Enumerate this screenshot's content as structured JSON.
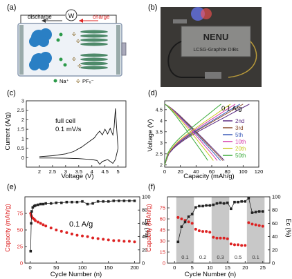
{
  "panels": {
    "a": {
      "label": "(a)",
      "discharge": "discharge",
      "charge": "charge",
      "meter": "W",
      "na_label": "Na⁺",
      "pf_label": "PF₆⁻"
    },
    "b": {
      "label": "(b)",
      "title": "NENU",
      "subtitle": "LCSG-Graphite DIBs"
    },
    "c": {
      "label": "(c)",
      "note1": "full cell",
      "note2": "0.1 mV/s",
      "xlabel": "Voltage (V)",
      "ylabel": "Current (A/g)"
    },
    "d": {
      "label": "(d)",
      "note": "0.1 A/g",
      "xlabel": "Capacity (mAh/g)",
      "ylabel": "Voltage (V)"
    },
    "e": {
      "label": "(e)",
      "note": "0.1 A/g",
      "xlabel": "Cycle Number (n)",
      "ylabel_left": "Capacity (mAh/g)",
      "ylabel_right": "Ec (%)"
    },
    "f": {
      "label": "(f)",
      "xlabel": "Cycle Number (n)",
      "ylabel_left": "Capacity (mAh/g)",
      "ylabel_right": "Ec (%)",
      "rates": [
        "0.1",
        "0.2",
        "0.3",
        "0.5",
        "0.1"
      ]
    }
  },
  "colors": {
    "capacity": "#dd2222",
    "efficiency": "#222222",
    "shade": "#c8c8c8"
  },
  "chart_data": [
    {
      "id": "c",
      "type": "line",
      "xlim": [
        1.5,
        5.3
      ],
      "ylim": [
        -0.5,
        3.0
      ],
      "xticks": [
        2.0,
        2.5,
        3.0,
        3.5,
        4.0,
        4.5,
        5.0
      ],
      "yticks": [
        0.0,
        0.5,
        1.0,
        1.5,
        2.0,
        2.5,
        3.0
      ],
      "series": [
        {
          "x": [
            2.0,
            2.5,
            3.0,
            3.3,
            3.6,
            3.9,
            4.1,
            4.2,
            4.3,
            4.4,
            4.5,
            4.6,
            4.7,
            4.8,
            4.85,
            4.9,
            4.95,
            5.0
          ],
          "y": [
            0.05,
            0.1,
            0.2,
            0.32,
            0.55,
            0.85,
            1.05,
            1.25,
            1.4,
            1.2,
            1.5,
            1.25,
            1.55,
            1.2,
            1.6,
            2.6,
            1.5,
            0.5
          ]
        },
        {
          "x": [
            5.0,
            4.9,
            4.8,
            4.7,
            4.6,
            4.5,
            4.4,
            4.3,
            4.2,
            4.0,
            3.5,
            3.0,
            2.5,
            2.0
          ],
          "y": [
            0.5,
            -0.1,
            -0.3,
            -0.2,
            -0.1,
            -0.15,
            -0.2,
            -0.35,
            -0.15,
            -0.1,
            -0.05,
            -0.03,
            -0.02,
            -0.02
          ]
        }
      ]
    },
    {
      "id": "d",
      "type": "line",
      "xlim": [
        0,
        120
      ],
      "ylim": [
        1.9,
        4.9
      ],
      "xticks": [
        0,
        20,
        40,
        60,
        80,
        100,
        120
      ],
      "yticks": [
        2.0,
        2.5,
        3.0,
        3.5,
        4.0,
        4.5
      ],
      "series": [
        {
          "name": "2nd",
          "color": "#5a2a82",
          "charge_cap": 108,
          "discharge_cap": 76
        },
        {
          "name": "3rd",
          "color": "#8b4a2b",
          "charge_cap": 100,
          "discharge_cap": 74
        },
        {
          "name": "5th",
          "color": "#3a5bb8",
          "charge_cap": 96,
          "discharge_cap": 71
        },
        {
          "name": "10th",
          "color": "#d63aa8",
          "charge_cap": 90,
          "discharge_cap": 67
        },
        {
          "name": "20th",
          "color": "#c8c820",
          "charge_cap": 84,
          "discharge_cap": 62
        },
        {
          "name": "50th",
          "color": "#3aaa3a",
          "charge_cap": 72,
          "discharge_cap": 55
        }
      ]
    },
    {
      "id": "e",
      "type": "scatter",
      "xlim": [
        -10,
        210
      ],
      "ylim": [
        0,
        100
      ],
      "xticks": [
        0,
        50,
        100,
        150,
        200
      ],
      "yticks": [
        0,
        25,
        50,
        75
      ],
      "y2lim": [
        0,
        100
      ],
      "y2ticks": [
        0,
        20,
        40,
        60,
        80,
        100
      ],
      "series": [
        {
          "name": "Capacity",
          "axis": "left",
          "x": [
            1,
            2,
            3,
            5,
            8,
            10,
            15,
            20,
            25,
            30,
            40,
            50,
            60,
            70,
            80,
            90,
            100,
            110,
            120,
            130,
            140,
            150,
            160,
            170,
            180,
            190,
            200
          ],
          "y": [
            75,
            72,
            70,
            68,
            66,
            64,
            62,
            60,
            58,
            56,
            53,
            50,
            48,
            46,
            44,
            42,
            41,
            40,
            38,
            37,
            36,
            35,
            34,
            34,
            33,
            33,
            32
          ]
        },
        {
          "name": "Ec",
          "axis": "right",
          "x": [
            1,
            2,
            3,
            5,
            8,
            10,
            15,
            20,
            25,
            30,
            40,
            50,
            60,
            70,
            80,
            90,
            100,
            110,
            120,
            130,
            140,
            150,
            160,
            170,
            180,
            190,
            200
          ],
          "y": [
            18,
            60,
            78,
            84,
            86,
            87,
            88,
            89,
            89,
            90,
            90,
            91,
            91,
            92,
            92,
            92,
            93,
            89,
            90,
            93,
            93,
            93,
            94,
            94,
            94,
            94,
            94
          ]
        }
      ]
    },
    {
      "id": "f",
      "type": "scatter",
      "xlim": [
        -2,
        27
      ],
      "ylim": [
        0,
        90
      ],
      "xticks": [
        0,
        5,
        10,
        15,
        20,
        25
      ],
      "yticks": [
        0,
        15,
        30,
        45,
        60,
        75
      ],
      "y2lim": [
        0,
        100
      ],
      "y2ticks": [
        0,
        20,
        40,
        60,
        80,
        100
      ],
      "shaded_ranges": [
        [
          1,
          6
        ],
        [
          11,
          16
        ],
        [
          21,
          26
        ]
      ],
      "series": [
        {
          "name": "Capacity",
          "axis": "left",
          "x": [
            1,
            2,
            3,
            4,
            5,
            6,
            7,
            8,
            9,
            10,
            11,
            12,
            13,
            14,
            15,
            16,
            17,
            18,
            19,
            20,
            21,
            22,
            23,
            24,
            25
          ],
          "y": [
            62,
            60,
            58,
            56,
            54,
            46,
            44,
            43,
            43,
            42,
            35,
            34,
            34,
            34,
            33,
            26,
            25,
            25,
            24,
            24,
            55,
            53,
            52,
            51,
            50
          ]
        },
        {
          "name": "Ec",
          "axis": "right",
          "x": [
            1,
            2,
            3,
            4,
            5,
            6,
            7,
            8,
            9,
            10,
            11,
            12,
            13,
            14,
            15,
            16,
            17,
            18,
            19,
            20,
            21,
            22,
            23,
            24,
            25
          ],
          "y": [
            32,
            55,
            62,
            70,
            74,
            84,
            86,
            86,
            87,
            87,
            88,
            90,
            91,
            90,
            91,
            82,
            92,
            92,
            93,
            93,
            98,
            76,
            77,
            78,
            78
          ]
        }
      ]
    }
  ]
}
